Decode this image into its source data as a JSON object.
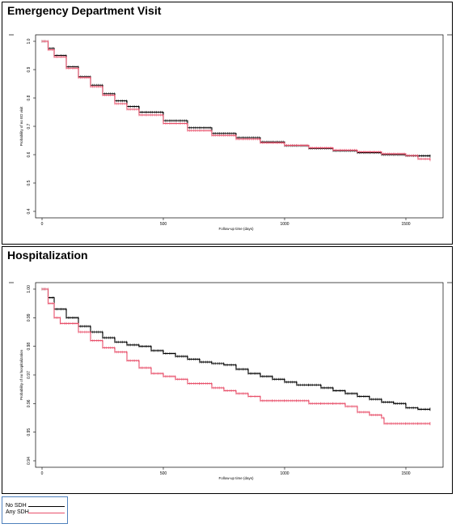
{
  "colors": {
    "no_sdh": "#000000",
    "any_sdh": "#e8506b"
  },
  "legend": {
    "items": [
      {
        "label": "No SDH",
        "color": "#000000"
      },
      {
        "label": "Any SDH",
        "color": "#e8506b"
      }
    ]
  },
  "chart_data": [
    {
      "type": "line",
      "title": "Emergency Department Visit",
      "xlabel": "Follow-up time (days)",
      "ylabel": "Probability of no ED visit",
      "xlim": [
        0,
        1600
      ],
      "ylim": [
        0.4,
        1.0
      ],
      "xticks": [
        "0",
        "500",
        "1000",
        "1500"
      ],
      "yticks": [
        "0.4",
        "0.5",
        "0.6",
        "0.7",
        "0.8",
        "0.9",
        "1.0"
      ],
      "series": [
        {
          "name": "No SDH",
          "x": [
            0,
            25,
            50,
            100,
            150,
            200,
            250,
            300,
            350,
            400,
            500,
            600,
            700,
            800,
            900,
            1000,
            1100,
            1200,
            1300,
            1400,
            1500,
            1600
          ],
          "y": [
            1.0,
            0.975,
            0.95,
            0.91,
            0.875,
            0.845,
            0.815,
            0.79,
            0.77,
            0.75,
            0.72,
            0.695,
            0.675,
            0.66,
            0.645,
            0.632,
            0.622,
            0.614,
            0.607,
            0.6,
            0.596,
            0.595
          ]
        },
        {
          "name": "Any SDH",
          "x": [
            0,
            25,
            50,
            100,
            150,
            200,
            250,
            300,
            350,
            400,
            500,
            600,
            700,
            800,
            900,
            1000,
            1100,
            1200,
            1300,
            1400,
            1500,
            1550,
            1600
          ],
          "y": [
            1.0,
            0.97,
            0.945,
            0.905,
            0.872,
            0.84,
            0.81,
            0.78,
            0.76,
            0.74,
            0.71,
            0.685,
            0.668,
            0.655,
            0.642,
            0.633,
            0.624,
            0.616,
            0.61,
            0.603,
            0.597,
            0.585,
            0.582
          ]
        }
      ]
    },
    {
      "type": "line",
      "title": "Hospitalization",
      "xlabel": "Follow-up time (days)",
      "ylabel": "Probability of no hospitalization",
      "xlim": [
        0,
        1600
      ],
      "ylim": [
        0.94,
        1.0
      ],
      "xticks": [
        "0",
        "500",
        "1000",
        "1500"
      ],
      "yticks": [
        "0.94",
        "0.95",
        "0.96",
        "0.97",
        "0.98",
        "0.99",
        "1.00"
      ],
      "series": [
        {
          "name": "No SDH",
          "x": [
            0,
            25,
            50,
            100,
            150,
            200,
            250,
            300,
            350,
            400,
            450,
            500,
            550,
            600,
            650,
            700,
            750,
            800,
            850,
            900,
            950,
            1000,
            1050,
            1100,
            1150,
            1200,
            1250,
            1300,
            1350,
            1400,
            1450,
            1500,
            1550,
            1600
          ],
          "y": [
            1.0,
            0.997,
            0.993,
            0.99,
            0.987,
            0.985,
            0.983,
            0.9815,
            0.9805,
            0.98,
            0.9785,
            0.9775,
            0.9765,
            0.9755,
            0.9745,
            0.974,
            0.9735,
            0.972,
            0.9705,
            0.9695,
            0.9685,
            0.9675,
            0.9665,
            0.9665,
            0.9655,
            0.9645,
            0.9635,
            0.9625,
            0.9615,
            0.9605,
            0.96,
            0.9585,
            0.958,
            0.958
          ]
        },
        {
          "name": "Any SDH",
          "x": [
            0,
            25,
            50,
            75,
            100,
            150,
            200,
            250,
            300,
            350,
            400,
            450,
            500,
            550,
            600,
            650,
            700,
            750,
            800,
            850,
            900,
            950,
            1000,
            1050,
            1100,
            1150,
            1200,
            1250,
            1300,
            1350,
            1400,
            1410,
            1450,
            1500,
            1550,
            1600
          ],
          "y": [
            1.0,
            0.995,
            0.99,
            0.988,
            0.988,
            0.985,
            0.982,
            0.9795,
            0.978,
            0.975,
            0.9725,
            0.9705,
            0.9695,
            0.9685,
            0.967,
            0.967,
            0.9655,
            0.9645,
            0.9635,
            0.9625,
            0.961,
            0.961,
            0.961,
            0.961,
            0.96,
            0.96,
            0.96,
            0.959,
            0.957,
            0.956,
            0.955,
            0.953,
            0.953,
            0.953,
            0.953,
            0.953
          ]
        }
      ]
    }
  ]
}
